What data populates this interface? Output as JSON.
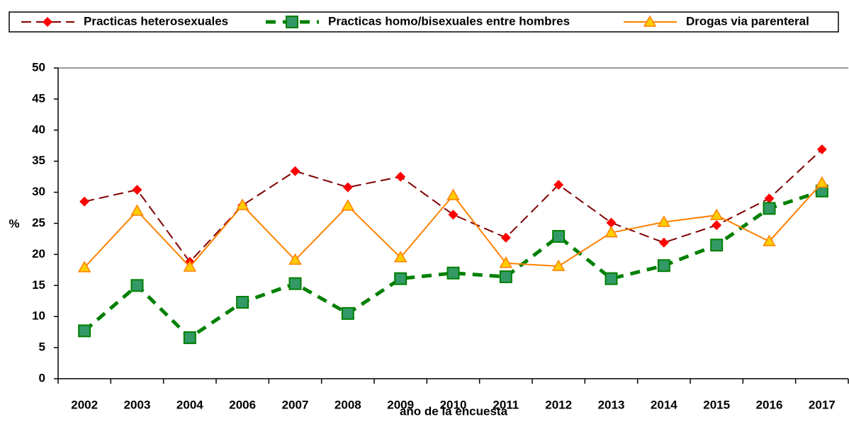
{
  "chart_data": {
    "type": "line",
    "x_label": "año de la encuesta",
    "y_label": "%",
    "categories": [
      "2002",
      "2003",
      "2004",
      "2006",
      "2007",
      "2008",
      "2009",
      "2010",
      "2011",
      "2012",
      "2013",
      "2014",
      "2015",
      "2016",
      "2017"
    ],
    "series": [
      {
        "name": "Practicas heterosexuales",
        "color": "#800000",
        "marker_color": "#ff0000",
        "marker": "diamond",
        "line_style": "dashed",
        "values": [
          28.5,
          30.4,
          18.8,
          27.9,
          33.4,
          30.8,
          32.5,
          26.4,
          22.7,
          31.2,
          25.1,
          21.9,
          24.7,
          29.0,
          36.9
        ]
      },
      {
        "name": "Practicas homo/bisexuales entre hombres",
        "color": "#008000",
        "marker_color": "#339966",
        "marker": "square",
        "line_style": "thick-dashed",
        "values": [
          7.7,
          15.0,
          6.6,
          12.3,
          15.3,
          10.5,
          16.1,
          17.0,
          16.4,
          22.9,
          16.1,
          18.2,
          21.5,
          27.4,
          30.2
        ]
      },
      {
        "name": "Drogas via parenteral",
        "color": "#ff8000",
        "marker_color": "#ffcc00",
        "marker": "triangle",
        "line_style": "solid",
        "values": [
          17.9,
          27.0,
          18.0,
          27.9,
          19.1,
          27.8,
          19.5,
          29.5,
          18.6,
          18.1,
          23.5,
          25.2,
          26.3,
          22.1,
          31.5
        ]
      }
    ],
    "ylim": [
      0,
      50
    ],
    "yticks": [
      0,
      5,
      10,
      15,
      20,
      25,
      30,
      35,
      40,
      45,
      50
    ],
    "grid": false,
    "legend": "top"
  }
}
